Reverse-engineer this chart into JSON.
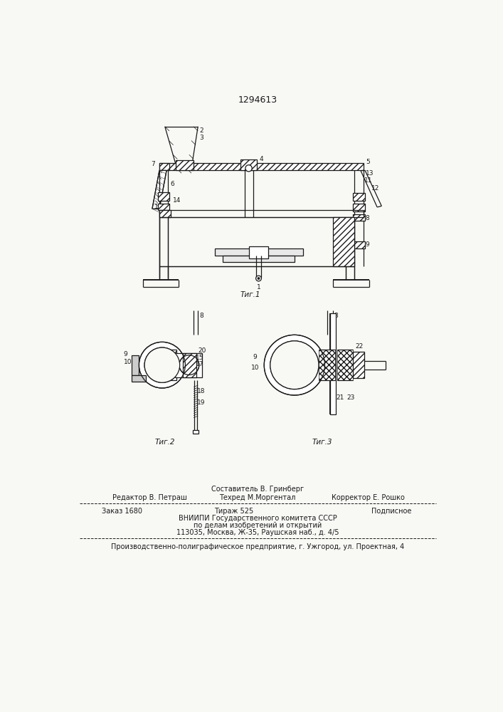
{
  "patent_number": "1294613",
  "fig1_caption": "Τиг.1",
  "fig2_caption": "Τиг.2",
  "fig3_caption": "Τиг.3",
  "footer_line1": "Составитель В. Гринберг",
  "footer_line2_left": "Редактор В. Петраш",
  "footer_line2_mid": "Техред М.Моргентал",
  "footer_line2_right": "Корректор Е. Рошко",
  "footer_line3_left": "Заказ 1680",
  "footer_line3_mid": "Тираж 525",
  "footer_line3_right": "Подписное",
  "footer_line4": "ВНИИПИ Государственного комитета СССР",
  "footer_line5": "по делам изобретений и открытий",
  "footer_line6": "113035, Москва, Ж-35, Раушская наб., д. 4/5",
  "footer_line7": "Производственно-полиграфическое предприятие, г. Ужгород, ул. Проектная, 4",
  "bg_color": "#f8f8f5",
  "line_color": "#1a1a1a"
}
